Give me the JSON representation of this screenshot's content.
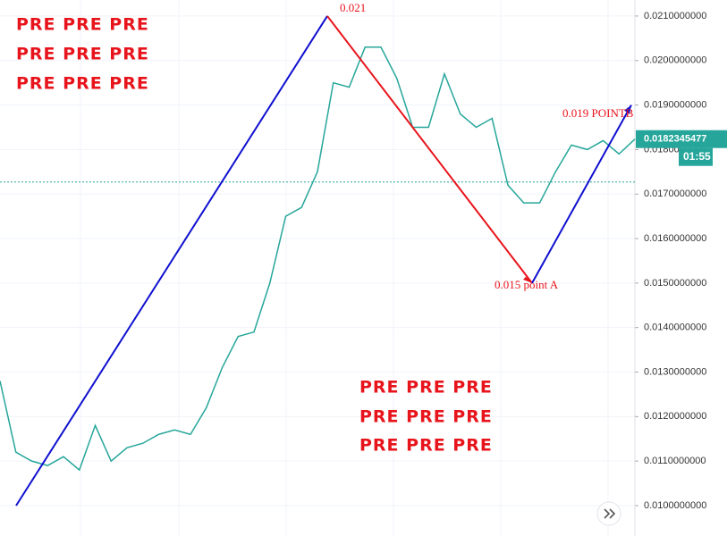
{
  "chart_data": {
    "type": "line",
    "color": "#26a69a",
    "grid": true,
    "values": [
      0.0128,
      0.0112,
      0.011,
      0.0109,
      0.0111,
      0.0108,
      0.0118,
      0.011,
      0.0113,
      0.0114,
      0.0116,
      0.0117,
      0.0116,
      0.0122,
      0.0131,
      0.0138,
      0.0139,
      0.015,
      0.0165,
      0.0167,
      0.0175,
      0.0195,
      0.0194,
      0.0203,
      0.0203,
      0.0196,
      0.0185,
      0.0185,
      0.0197,
      0.0188,
      0.0185,
      0.0187,
      0.0172,
      0.0168,
      0.0168,
      0.0175,
      0.0181,
      0.018,
      0.0182,
      0.0179,
      0.0182345477
    ],
    "ylim": [
      0.009317,
      0.02136
    ],
    "yticks": [
      {
        "value": 0.021,
        "label": "0.0210000000"
      },
      {
        "value": 0.02,
        "label": "0.0200000000"
      },
      {
        "value": 0.019,
        "label": "0.0190000000"
      },
      {
        "value": 0.018,
        "label": "0.0180000000"
      },
      {
        "value": 0.017,
        "label": "0.0170000000"
      },
      {
        "value": 0.016,
        "label": "0.0160000000"
      },
      {
        "value": 0.015,
        "label": "0.0150000000"
      },
      {
        "value": 0.014,
        "label": "0.0140000000"
      },
      {
        "value": 0.013,
        "label": "0.0130000000"
      },
      {
        "value": 0.012,
        "label": "0.0120000000"
      },
      {
        "value": 0.011,
        "label": "0.0110000000"
      },
      {
        "value": 0.01,
        "label": "0.0100000000"
      }
    ],
    "last_price": {
      "value": 0.0182345477,
      "label": "0.0182345477"
    },
    "countdown": "01:55",
    "reference_line": 0.01727,
    "annotations": [
      {
        "text": "0.021",
        "value": 0.021
      },
      {
        "text": "0.015  point  A",
        "value": 0.015
      },
      {
        "text": "0.019  POINTB",
        "value": 0.019
      }
    ],
    "watermarks": [
      [
        "PRE  PRE  PRE",
        "PRE  PRE  PRE",
        "PRE  PRE  PRE"
      ],
      [
        "PRE  PRE  PRE",
        "PRE  PRE  PRE",
        "PRE  PRE  PRE"
      ]
    ]
  }
}
